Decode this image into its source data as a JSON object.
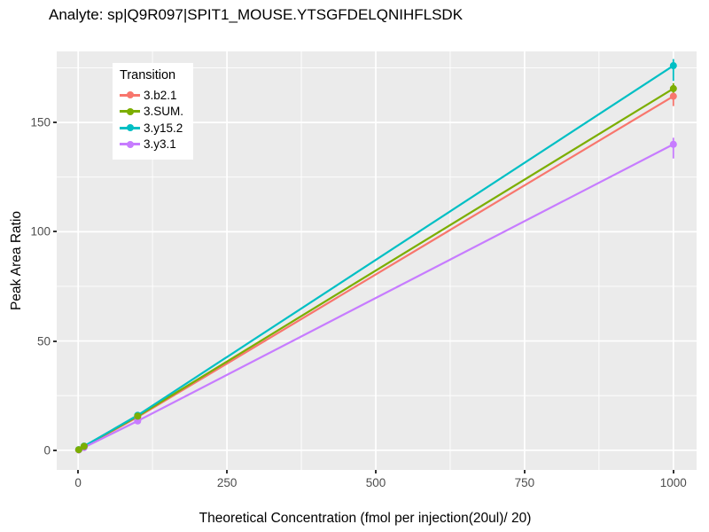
{
  "chart_data": {
    "type": "line",
    "title": "Analyte: sp|Q9R097|SPIT1_MOUSE.YTSGFDELQNIHFLSDK",
    "xlabel": "Theoretical Concentration (fmol per injection(20ul)/ 20)",
    "ylabel": "Peak Area Ratio",
    "legend_title": "Transition",
    "legend_position": "inside-top-left",
    "grid": true,
    "panel_bg": "#EBEBEB",
    "grid_major_color": "#FFFFFF",
    "grid_minor_color": "#FFFFFF",
    "axis_text_color": "#4D4D4D",
    "xlim": [
      -36,
      1039
    ],
    "ylim": [
      -9,
      182.5
    ],
    "x_ticks": [
      0,
      250,
      500,
      750,
      1000
    ],
    "y_ticks": [
      0,
      50,
      100,
      150
    ],
    "x_minor_ticks": [
      125,
      375,
      625,
      875
    ],
    "y_minor_ticks": [
      25,
      75,
      125,
      175
    ],
    "series": [
      {
        "name": "3.b2.1",
        "color": "#F8766D",
        "x": [
          1,
          10,
          100,
          1000
        ],
        "y": [
          0.2,
          1.6,
          15.2,
          162.0
        ],
        "err_low": [
          null,
          null,
          null,
          157.5
        ],
        "err_high": [
          null,
          null,
          null,
          163.5
        ]
      },
      {
        "name": "3.SUM.",
        "color": "#7CAE00",
        "x": [
          1,
          10,
          100,
          1000
        ],
        "y": [
          0.25,
          1.8,
          15.6,
          165.5
        ],
        "err_low": [
          null,
          null,
          null,
          163.5
        ],
        "err_high": [
          null,
          null,
          null,
          168.0
        ]
      },
      {
        "name": "3.y15.2",
        "color": "#00BFC4",
        "x": [
          1,
          10,
          100,
          1000
        ],
        "y": [
          0.3,
          1.9,
          16.0,
          176.0
        ],
        "err_low": [
          null,
          null,
          null,
          169.0
        ],
        "err_high": [
          null,
          null,
          null,
          179.0
        ]
      },
      {
        "name": "3.y3.1",
        "color": "#C77CFF",
        "x": [
          1,
          10,
          100,
          1000
        ],
        "y": [
          0.15,
          1.3,
          13.4,
          140.0
        ],
        "err_low": [
          null,
          null,
          12.0,
          133.5
        ],
        "err_high": [
          null,
          null,
          14.8,
          143.0
        ]
      }
    ],
    "point_draw_order": [
      0,
      2,
      3,
      1
    ]
  }
}
